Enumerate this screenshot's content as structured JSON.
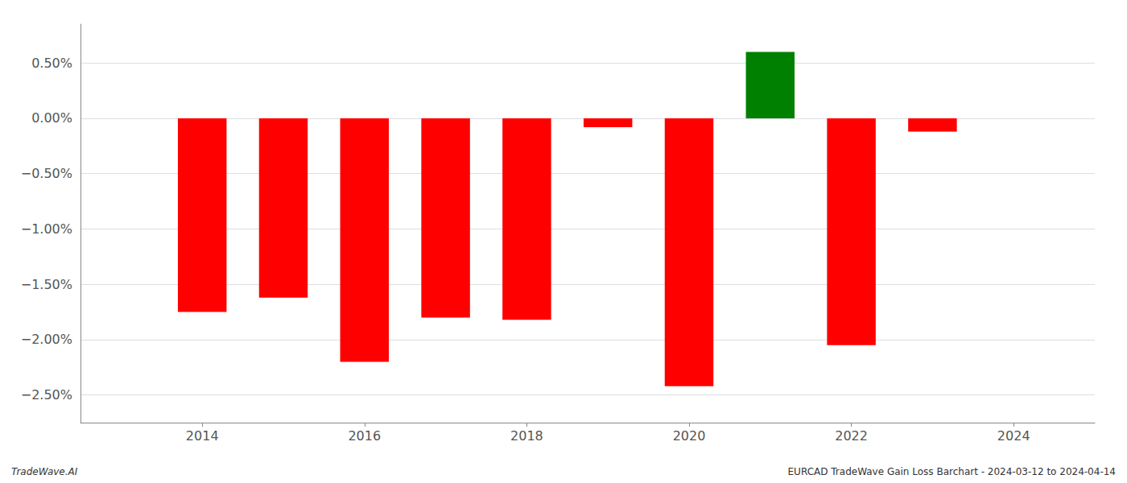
{
  "chart_data": {
    "type": "bar",
    "x": [
      2014,
      2015,
      2016,
      2017,
      2018,
      2019,
      2020,
      2021,
      2022,
      2023
    ],
    "values": [
      -1.75,
      -1.62,
      -2.2,
      -1.8,
      -1.82,
      -0.08,
      -2.42,
      0.6,
      -2.05,
      -0.12
    ],
    "colors": [
      "#ff0000",
      "#ff0000",
      "#ff0000",
      "#ff0000",
      "#ff0000",
      "#ff0000",
      "#ff0000",
      "#008000",
      "#ff0000",
      "#ff0000"
    ],
    "xlim": [
      2012.5,
      2025.0
    ],
    "xticks": [
      2014,
      2016,
      2018,
      2020,
      2022,
      2024
    ],
    "ylim": [
      -2.75,
      0.85
    ],
    "yticks": [
      {
        "value": -2.5,
        "label": "−2.50%"
      },
      {
        "value": -2.0,
        "label": "−2.00%"
      },
      {
        "value": -1.5,
        "label": "−1.50%"
      },
      {
        "value": -1.0,
        "label": "−1.00%"
      },
      {
        "value": -0.5,
        "label": "−0.50%"
      },
      {
        "value": 0.0,
        "label": "0.00%"
      },
      {
        "value": 0.5,
        "label": "0.50%"
      }
    ],
    "grid": true,
    "annotations": [
      "TradeWave.AI",
      "EURCAD TradeWave Gain Loss Barchart - 2024-03-12 to 2024-04-14"
    ]
  }
}
